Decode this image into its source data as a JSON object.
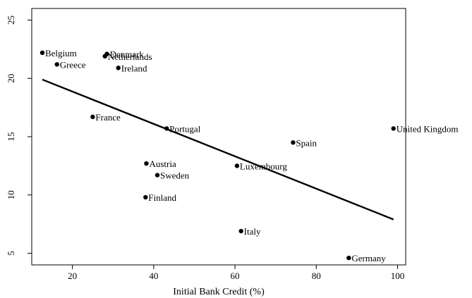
{
  "chart_data": {
    "type": "scatter",
    "title": "",
    "xlabel": "Initial Bank Credit (%)",
    "ylabel": "",
    "xlim": [
      10,
      102
    ],
    "ylim": [
      4,
      26
    ],
    "x_ticks": [
      20,
      40,
      60,
      80,
      100
    ],
    "y_ticks": [
      5,
      10,
      15,
      20,
      25
    ],
    "grid": false,
    "points": [
      {
        "label": "Belgium",
        "x": 12.6,
        "y": 22.2
      },
      {
        "label": "Greece",
        "x": 16.2,
        "y": 21.2
      },
      {
        "label": "Denmark",
        "x": 28.5,
        "y": 22.1
      },
      {
        "label": "Netherlands",
        "x": 28.0,
        "y": 21.9
      },
      {
        "label": "Ireland",
        "x": 31.3,
        "y": 20.9
      },
      {
        "label": "France",
        "x": 25.0,
        "y": 16.7
      },
      {
        "label": "Portugal",
        "x": 43.2,
        "y": 15.7
      },
      {
        "label": "Austria",
        "x": 38.2,
        "y": 12.7
      },
      {
        "label": "Sweden",
        "x": 40.9,
        "y": 11.7
      },
      {
        "label": "Finland",
        "x": 38.0,
        "y": 9.8
      },
      {
        "label": "Luxembourg",
        "x": 60.5,
        "y": 12.5
      },
      {
        "label": "Spain",
        "x": 74.3,
        "y": 14.5
      },
      {
        "label": "United Kingdom",
        "x": 99.0,
        "y": 15.7
      },
      {
        "label": "Italy",
        "x": 61.5,
        "y": 6.9
      },
      {
        "label": "Germany",
        "x": 88.0,
        "y": 4.6
      }
    ],
    "fit_line": {
      "x": [
        12.6,
        99.0
      ],
      "y": [
        19.9,
        7.9
      ]
    }
  }
}
